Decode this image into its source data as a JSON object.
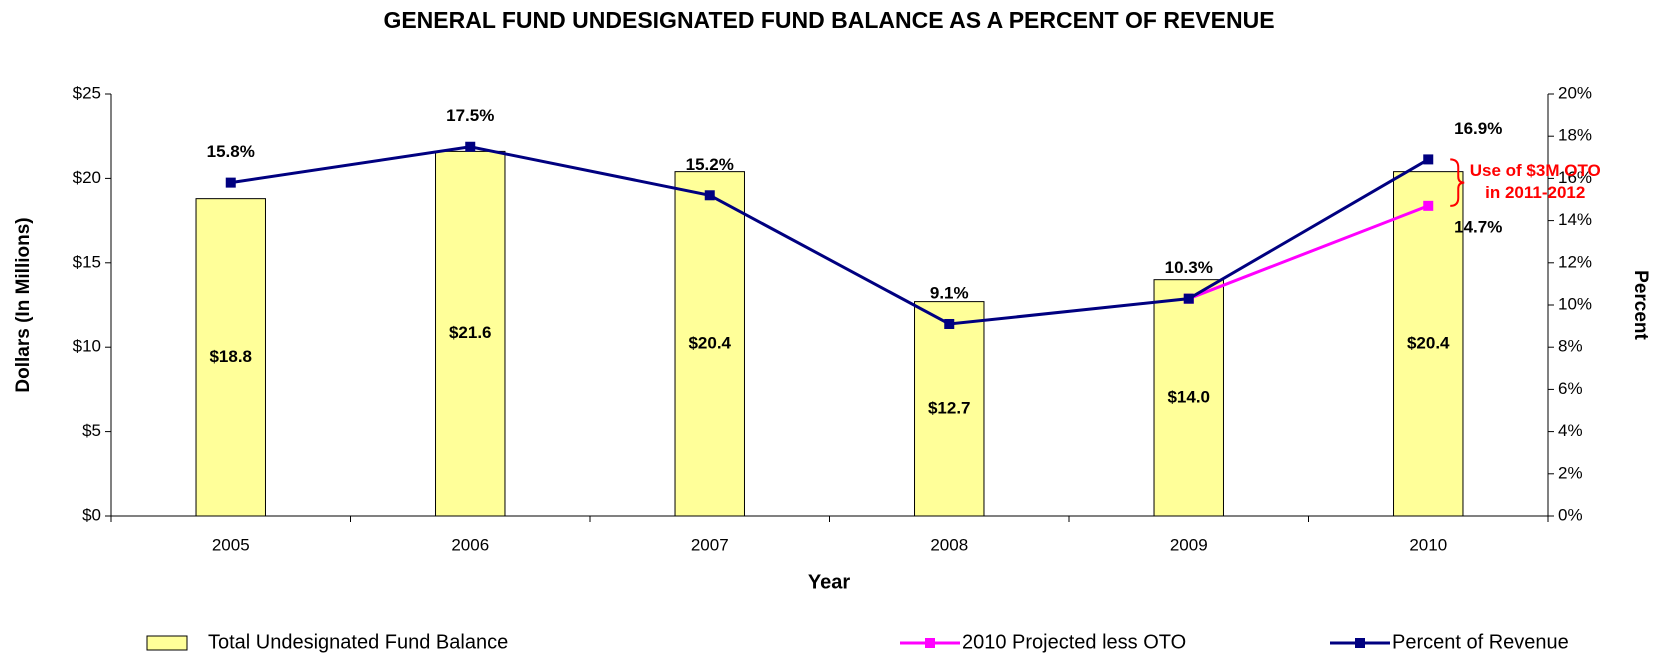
{
  "chart_data": {
    "type": "bar",
    "title": "GENERAL FUND UNDESIGNATED FUND BALANCE AS A PERCENT OF REVENUE",
    "xlabel": "Year",
    "ylabel": "Dollars (In Millions)",
    "y2label": "Percent",
    "categories": [
      "2005",
      "2006",
      "2007",
      "2008",
      "2009",
      "2010"
    ],
    "series": [
      {
        "name": "Total Undesignated Fund Balance",
        "type": "bar",
        "color": "#ffff99",
        "values": [
          18.8,
          21.6,
          20.4,
          12.7,
          14.0,
          20.4
        ],
        "value_labels": [
          "$18.8",
          "$21.6",
          "$20.4",
          "$12.7",
          "$14.0",
          "$20.4"
        ]
      },
      {
        "name": "2010 Projected less OTO",
        "type": "line",
        "axis": "y2",
        "color": "#ff00ff",
        "values": [
          null,
          null,
          null,
          null,
          10.3,
          14.7
        ],
        "value_labels": [
          null,
          null,
          null,
          null,
          null,
          "14.7%"
        ]
      },
      {
        "name": "Percent of Revenue",
        "type": "line",
        "axis": "y2",
        "color": "#000080",
        "values": [
          15.8,
          17.5,
          15.2,
          9.1,
          10.3,
          16.9
        ],
        "value_labels": [
          "15.8%",
          "17.5%",
          "15.2%",
          "9.1%",
          "10.3%",
          "16.9%"
        ]
      }
    ],
    "annotations": [
      "Use of $3M OTO",
      "in 2011-2012"
    ],
    "annotation_color": "#ff0000",
    "ylim": [
      0,
      25
    ],
    "yticks": [
      {
        "value": 0,
        "label": "$0"
      },
      {
        "value": 5,
        "label": "$5"
      },
      {
        "value": 10,
        "label": "$10"
      },
      {
        "value": 15,
        "label": "$15"
      },
      {
        "value": 20,
        "label": "$20"
      },
      {
        "value": 25,
        "label": "$25"
      }
    ],
    "y2lim": [
      0,
      20
    ],
    "y2ticks": [
      {
        "value": 0,
        "label": "0%"
      },
      {
        "value": 2,
        "label": "2%"
      },
      {
        "value": 4,
        "label": "4%"
      },
      {
        "value": 6,
        "label": "6%"
      },
      {
        "value": 8,
        "label": "8%"
      },
      {
        "value": 10,
        "label": "10%"
      },
      {
        "value": 12,
        "label": "12%"
      },
      {
        "value": 14,
        "label": "14%"
      },
      {
        "value": 16,
        "label": "16%"
      },
      {
        "value": 18,
        "label": "18%"
      },
      {
        "value": 20,
        "label": "20%"
      }
    ],
    "grid": false,
    "legend": "bottom"
  }
}
